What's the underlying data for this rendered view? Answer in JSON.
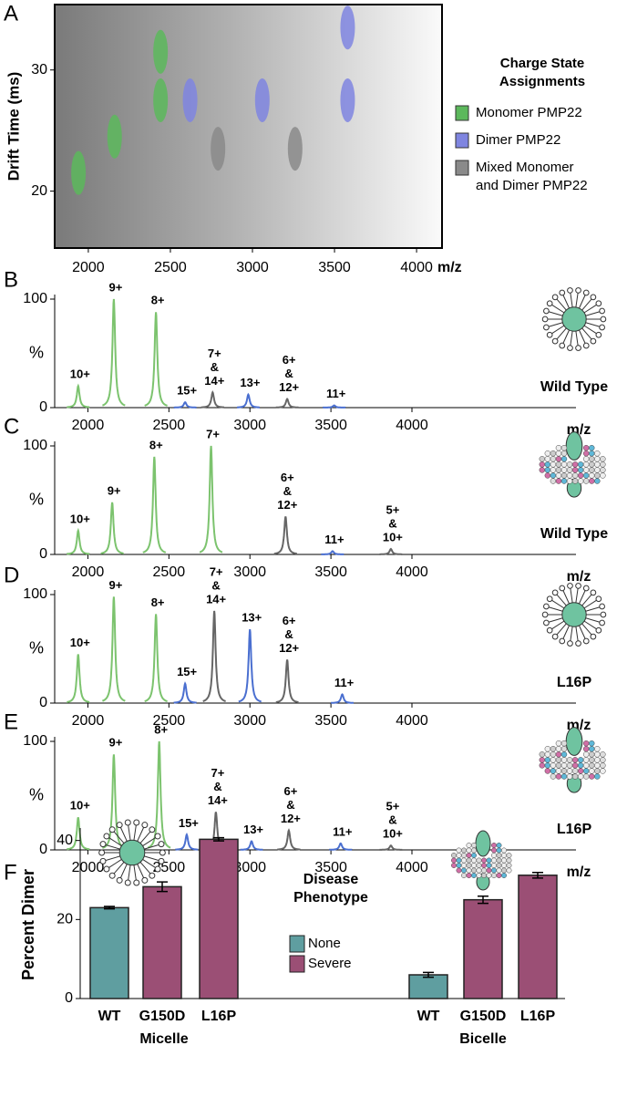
{
  "chart_data": [
    {
      "type": "heatmap",
      "panel": "A",
      "y_label": "Drift Time (ms)",
      "x_label": "m/z",
      "xlim": [
        1795,
        4155
      ],
      "ylim": [
        15.3,
        35.4
      ],
      "xticks": [
        2000,
        2500,
        3000,
        3500,
        4000
      ],
      "yticks": [
        20,
        30
      ],
      "legend_title": "Charge State Assignments",
      "series": [
        {
          "name": "Monomer PMP22",
          "color": "#5cb85c",
          "x": [
            1940,
            2160,
            2440,
            2440
          ],
          "y": [
            21.5,
            24.5,
            27.5,
            31.5
          ]
        },
        {
          "name": "Dimer PMP22",
          "color": "#7f85e0",
          "x": [
            2620,
            3060,
            3580,
            3580
          ],
          "y": [
            27.5,
            27.5,
            27.5,
            33.5
          ]
        },
        {
          "name": "Mixed Monomer and Dimer PMP22",
          "color": "#8a8a8a",
          "x": [
            2790,
            3260
          ],
          "y": [
            23.5,
            23.5
          ]
        }
      ]
    },
    {
      "type": "spectrum",
      "panel": "B",
      "y_label": "%",
      "x_label": "m/z",
      "sample": "Wild Type",
      "icon": "micelle",
      "xlim": [
        1795,
        4900
      ],
      "ylim": [
        0,
        100
      ],
      "xticks": [
        2000,
        2500,
        3000,
        3500,
        4000
      ],
      "yticks": [
        0,
        100
      ],
      "peaks": [
        {
          "x": 1940,
          "value": 20,
          "label": [
            "10+"
          ],
          "color": "#7cc36e"
        },
        {
          "x": 2160,
          "value": 100,
          "label": [
            "9+"
          ],
          "color": "#7cc36e"
        },
        {
          "x": 2420,
          "value": 88,
          "label": [
            "8+"
          ],
          "color": "#7cc36e"
        },
        {
          "x": 2600,
          "value": 5,
          "label": [
            "15+"
          ],
          "color": "#4a6fd0"
        },
        {
          "x": 2770,
          "value": 14,
          "label": [
            "7+",
            "&",
            "14+"
          ],
          "color": "#666666"
        },
        {
          "x": 2990,
          "value": 12,
          "label": [
            "13+"
          ],
          "color": "#4a6fd0"
        },
        {
          "x": 3230,
          "value": 8,
          "label": [
            "6+",
            "&",
            "12+"
          ],
          "color": "#666666"
        },
        {
          "x": 3520,
          "value": 2,
          "label": [
            "11+"
          ],
          "color": "#4a6fd0"
        }
      ]
    },
    {
      "type": "spectrum",
      "panel": "C",
      "y_label": "%",
      "x_label": "m/z",
      "sample": "Wild Type",
      "icon": "bicelle",
      "xlim": [
        1795,
        4900
      ],
      "ylim": [
        0,
        100
      ],
      "xticks": [
        2000,
        2500,
        3000,
        3500,
        4000
      ],
      "yticks": [
        0,
        100
      ],
      "peaks": [
        {
          "x": 1940,
          "value": 22,
          "label": [
            "10+"
          ],
          "color": "#7cc36e"
        },
        {
          "x": 2150,
          "value": 48,
          "label": [
            "9+"
          ],
          "color": "#7cc36e"
        },
        {
          "x": 2410,
          "value": 90,
          "label": [
            "8+"
          ],
          "color": "#7cc36e"
        },
        {
          "x": 2760,
          "value": 100,
          "label": [
            "7+"
          ],
          "color": "#7cc36e"
        },
        {
          "x": 3220,
          "value": 35,
          "label": [
            "6+",
            "&",
            "12+"
          ],
          "color": "#666666"
        },
        {
          "x": 3510,
          "value": 3,
          "label": [
            "11+"
          ],
          "color": "#4a6fd0"
        },
        {
          "x": 3870,
          "value": 5,
          "label": [
            "5+",
            "&",
            "10+"
          ],
          "color": "#666666"
        }
      ]
    },
    {
      "type": "spectrum",
      "panel": "D",
      "y_label": "%",
      "x_label": "m/z",
      "sample": "L16P",
      "icon": "micelle",
      "xlim": [
        1795,
        4900
      ],
      "ylim": [
        0,
        100
      ],
      "xticks": [
        2000,
        2500,
        3000,
        3500,
        4000
      ],
      "yticks": [
        0,
        100
      ],
      "peaks": [
        {
          "x": 1940,
          "value": 45,
          "label": [
            "10+"
          ],
          "color": "#7cc36e"
        },
        {
          "x": 2160,
          "value": 98,
          "label": [
            "9+"
          ],
          "color": "#7cc36e"
        },
        {
          "x": 2420,
          "value": 82,
          "label": [
            "8+"
          ],
          "color": "#7cc36e"
        },
        {
          "x": 2600,
          "value": 18,
          "label": [
            "15+"
          ],
          "color": "#4a6fd0"
        },
        {
          "x": 2780,
          "value": 85,
          "label": [
            "7+",
            "&",
            "14+"
          ],
          "color": "#666666"
        },
        {
          "x": 3000,
          "value": 68,
          "label": [
            "13+"
          ],
          "color": "#4a6fd0"
        },
        {
          "x": 3230,
          "value": 40,
          "label": [
            "6+",
            "&",
            "12+"
          ],
          "color": "#666666"
        },
        {
          "x": 3570,
          "value": 8,
          "label": [
            "11+"
          ],
          "color": "#4a6fd0"
        }
      ]
    },
    {
      "type": "spectrum",
      "panel": "E",
      "y_label": "%",
      "x_label": "m/z",
      "sample": "L16P",
      "icon": "bicelle",
      "xlim": [
        1795,
        4900
      ],
      "ylim": [
        0,
        100
      ],
      "xticks": [
        2000,
        2500,
        3000,
        3500,
        4000
      ],
      "yticks": [
        0,
        100
      ],
      "peaks": [
        {
          "x": 1940,
          "value": 30,
          "label": [
            "10+"
          ],
          "color": "#7cc36e"
        },
        {
          "x": 2160,
          "value": 88,
          "label": [
            "9+"
          ],
          "color": "#7cc36e"
        },
        {
          "x": 2440,
          "value": 100,
          "label": [
            "8+"
          ],
          "color": "#7cc36e"
        },
        {
          "x": 2610,
          "value": 14,
          "label": [
            "15+"
          ],
          "color": "#4a6fd0"
        },
        {
          "x": 2790,
          "value": 35,
          "label": [
            "7+",
            "&",
            "14+"
          ],
          "color": "#666666"
        },
        {
          "x": 3010,
          "value": 8,
          "label": [
            "13+"
          ],
          "color": "#4a6fd0"
        },
        {
          "x": 3240,
          "value": 18,
          "label": [
            "6+",
            "&",
            "12+"
          ],
          "color": "#666666"
        },
        {
          "x": 3560,
          "value": 6,
          "label": [
            "11+"
          ],
          "color": "#4a6fd0"
        },
        {
          "x": 3870,
          "value": 4,
          "label": [
            "5+",
            "&",
            "10+"
          ],
          "color": "#666666"
        }
      ]
    },
    {
      "type": "bar",
      "panel": "F",
      "y_label": "Percent Dimer",
      "ylim": [
        0,
        42
      ],
      "yticks": [
        0,
        20,
        40
      ],
      "groups": [
        "Micelle",
        "Bicelle"
      ],
      "categories": [
        "WT",
        "G150D",
        "L16P",
        "WT",
        "G150D",
        "L16P"
      ],
      "values": [
        23,
        28.3,
        40.3,
        6,
        25,
        31.2
      ],
      "errors": [
        0.3,
        1.2,
        0.4,
        0.6,
        0.9,
        0.7
      ],
      "phenotype": [
        0,
        1,
        1,
        0,
        1,
        1
      ],
      "legend_title": "Disease Phenotype",
      "legend": [
        {
          "name": "None",
          "color": "#5f9ea0"
        },
        {
          "name": "Severe",
          "color": "#9b4f75"
        }
      ]
    }
  ]
}
